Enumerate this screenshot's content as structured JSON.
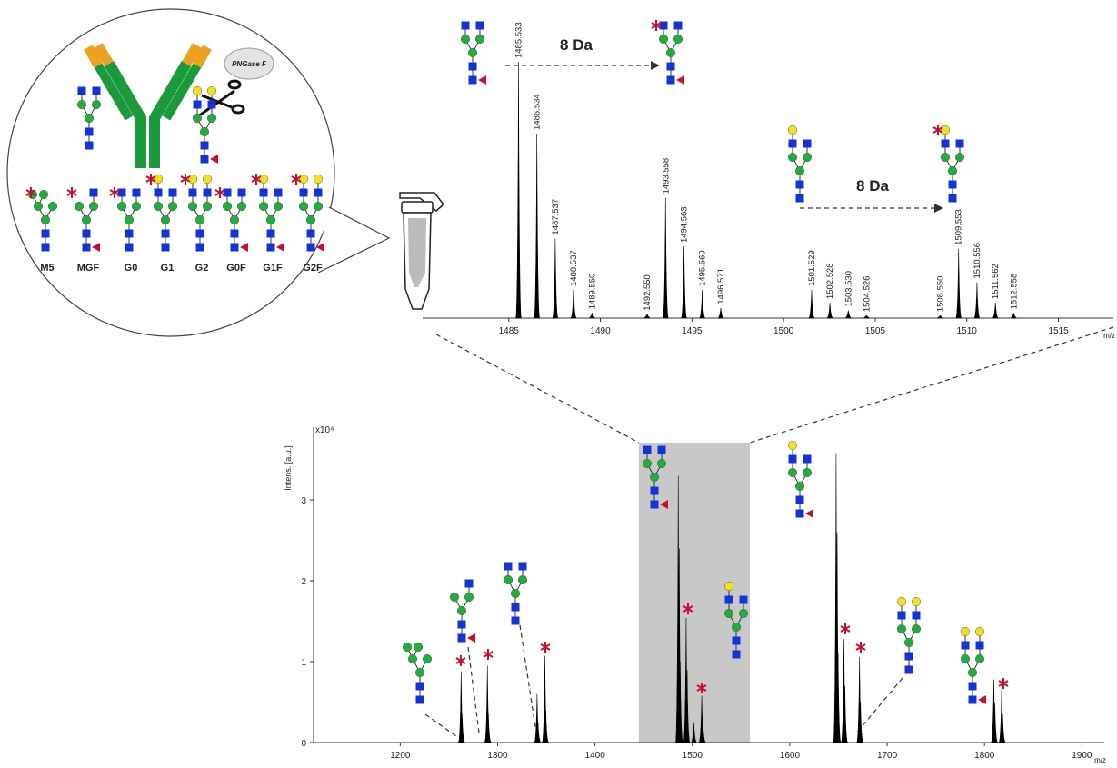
{
  "annotations": {
    "enzyme": "PNGase F",
    "glycans": [
      "M5",
      "MGF",
      "G0",
      "G1",
      "G2",
      "G0F",
      "G1F",
      "G2F"
    ],
    "shifts": [
      "8 Da",
      "8 Da"
    ]
  },
  "chart_data": [
    {
      "type": "spectrum",
      "x_label": "m/z",
      "color": "#000000",
      "x": [
        1485.533,
        1486.534,
        1487.537,
        1488.537,
        1489.55,
        1492.55,
        1493.558,
        1494.563,
        1495.56,
        1496.571,
        1501.529,
        1502.528,
        1503.53,
        1504.526,
        1508.55,
        1509.553,
        1510.556,
        1511.562,
        1512.558
      ],
      "peak_labels": [
        "1485.533",
        "1486.534",
        "1487.537",
        "1488.537",
        "1489.550",
        "1492.550",
        "1493.558",
        "1494.563",
        "1495.560",
        "1496.571",
        "1501.529",
        "1502.528",
        "1503.530",
        "1504.526",
        "1508.550",
        "1509.553",
        "1510.556",
        "1511.562",
        "1512.558"
      ],
      "values": [
        100,
        72,
        31,
        11,
        2,
        1.5,
        47,
        28,
        11,
        4,
        11,
        6,
        3,
        1,
        1,
        27,
        14,
        6,
        2
      ],
      "xlim": [
        1480.3,
        1518
      ],
      "xticks": [
        1485,
        1490,
        1495,
        1500,
        1505,
        1510,
        1515
      ]
    },
    {
      "type": "spectrum",
      "y_label": "Intens. [a.u.]",
      "y_multiplier": "x10⁴",
      "x_label": "m/z",
      "color": "#000000",
      "x": [
        1262.5,
        1263.5,
        1289.5,
        1290.5,
        1340.5,
        1341.5,
        1348.5,
        1349.5,
        1485.5,
        1486.5,
        1487.5,
        1493.6,
        1494.6,
        1501.5,
        1509.6,
        1510.6,
        1647.6,
        1648.6,
        1649.6,
        1655.6,
        1656.6,
        1671.6,
        1672.6,
        1809.6,
        1810.6,
        1817.6,
        1818.6
      ],
      "values": [
        0.88,
        0.35,
        0.95,
        0.35,
        0.6,
        0.25,
        1.07,
        0.4,
        3.3,
        2.4,
        1.0,
        1.54,
        0.9,
        0.25,
        0.58,
        0.3,
        3.58,
        2.6,
        1.1,
        1.28,
        0.7,
        1.06,
        0.5,
        0.78,
        0.5,
        0.66,
        0.35
      ],
      "xlim": [
        1111,
        1923
      ],
      "xticks": [
        1200,
        1300,
        1400,
        1500,
        1600,
        1700,
        1800,
        1900
      ],
      "ylim": [
        0,
        3.9
      ],
      "yticks": [
        0,
        1,
        2,
        3
      ],
      "highlight": [
        1445,
        1559
      ]
    }
  ]
}
